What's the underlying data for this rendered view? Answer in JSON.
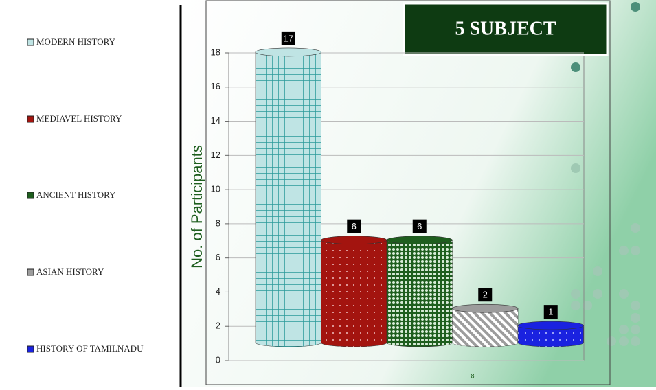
{
  "chart_data": {
    "type": "bar",
    "title": "5 SUBJECT",
    "y_label": "No. of Participants",
    "x_label": "8",
    "categories": [
      "MODERN HISTORY",
      "MEDIAVEL HISTORY",
      "ANCIENT HISTORY",
      "ASIAN HISTORY",
      "HISTORY OF TAMILNADU"
    ],
    "values": [
      17,
      6,
      6,
      2,
      1
    ],
    "colors": [
      "#bfe4e4",
      "#a3140f",
      "#1e5e1e",
      "#9c9c9c",
      "#1a22e0"
    ],
    "ylim": [
      0,
      18
    ],
    "yticks": [
      0,
      2,
      4,
      6,
      8,
      10,
      12,
      14,
      16,
      18
    ],
    "grid": true
  }
}
